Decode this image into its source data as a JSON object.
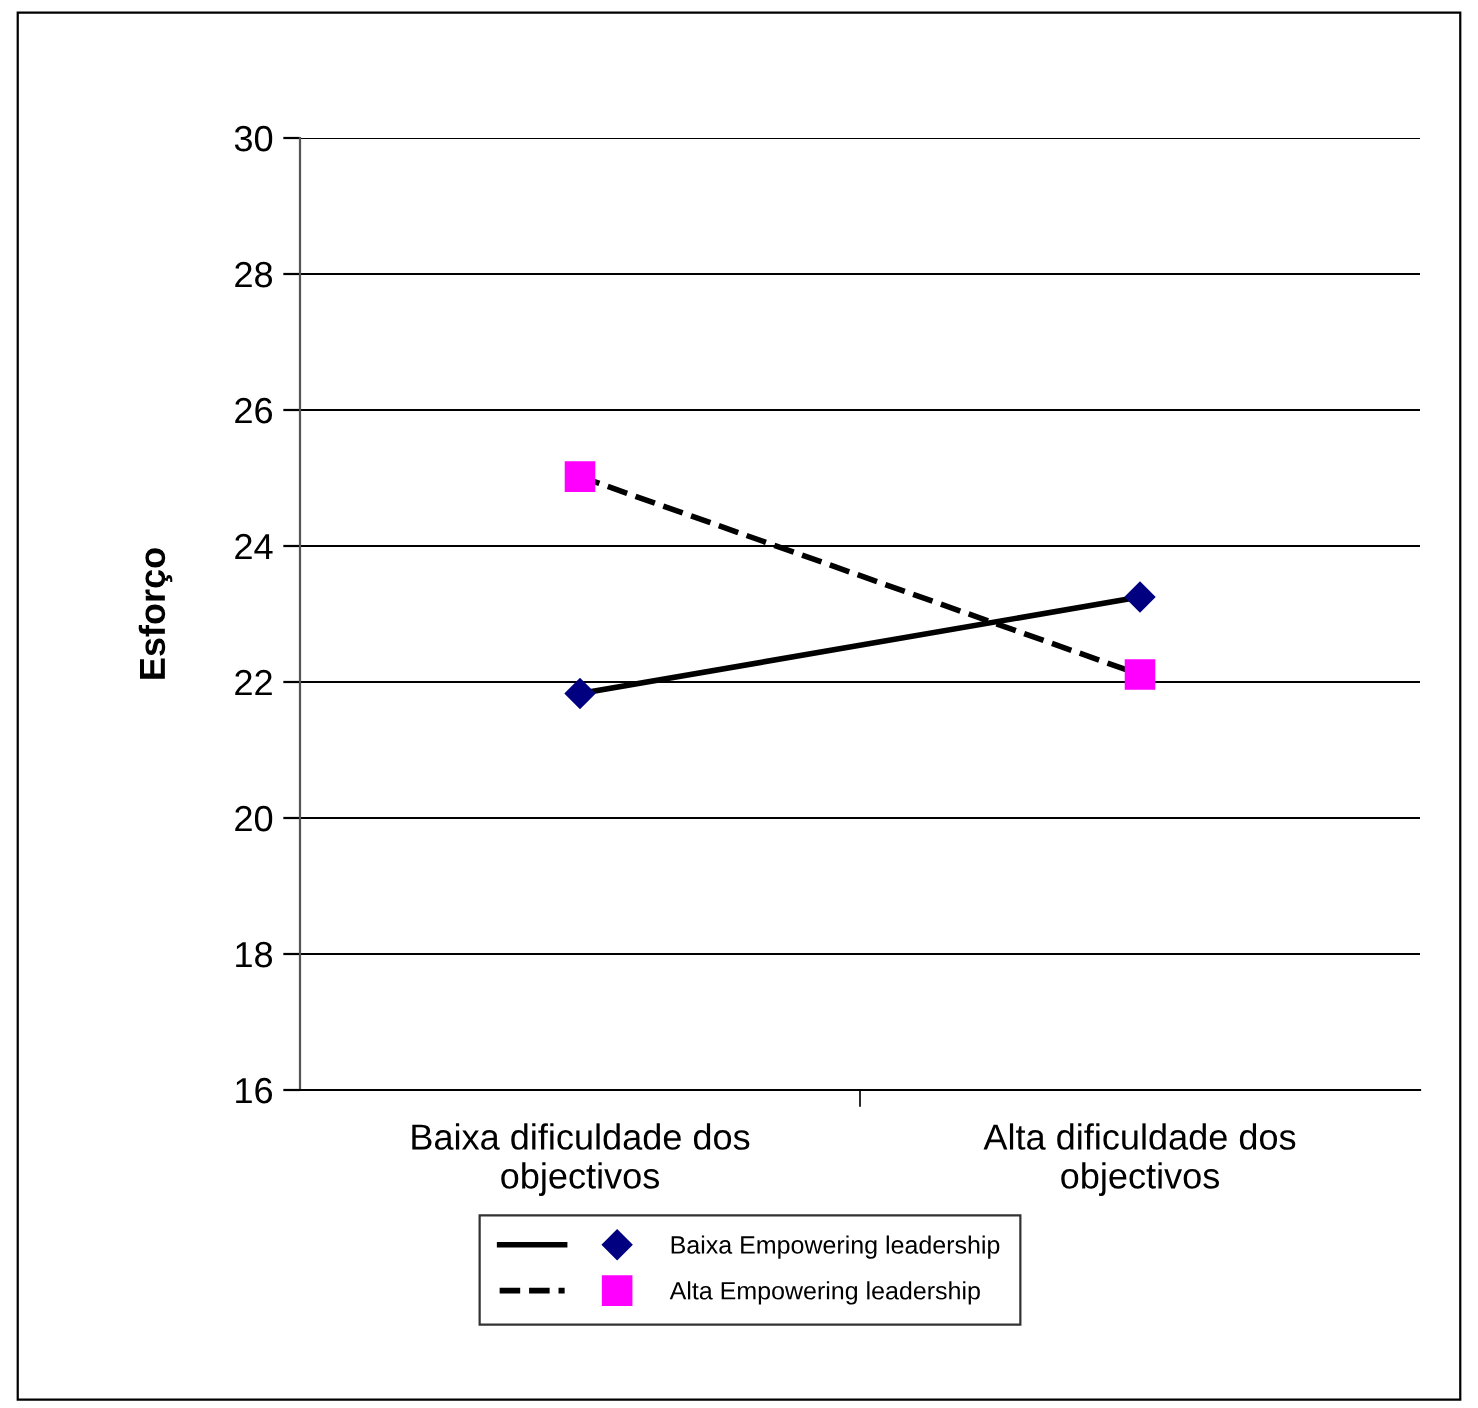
{
  "chart_data": {
    "type": "line",
    "ylabel": "Esforço",
    "categories": [
      "Baixa dificuldade dos\nobjectivos",
      "Alta dificuldade dos\nobjectivos"
    ],
    "series": [
      {
        "name": "Baixa Empowering leadership",
        "color": "#000080",
        "values": [
          21.83,
          23.25
        ],
        "marker": "diamond",
        "line_style": "solid"
      },
      {
        "name": "Alta Empowering leadership",
        "color": "#ff00ff",
        "values": [
          25.02,
          22.11
        ],
        "marker": "square",
        "line_style": "dashed"
      }
    ],
    "ylim": [
      16,
      30
    ],
    "yticks": [
      16,
      18,
      20,
      22,
      24,
      26,
      28,
      30
    ],
    "grid": "y",
    "legend": "bottom"
  }
}
